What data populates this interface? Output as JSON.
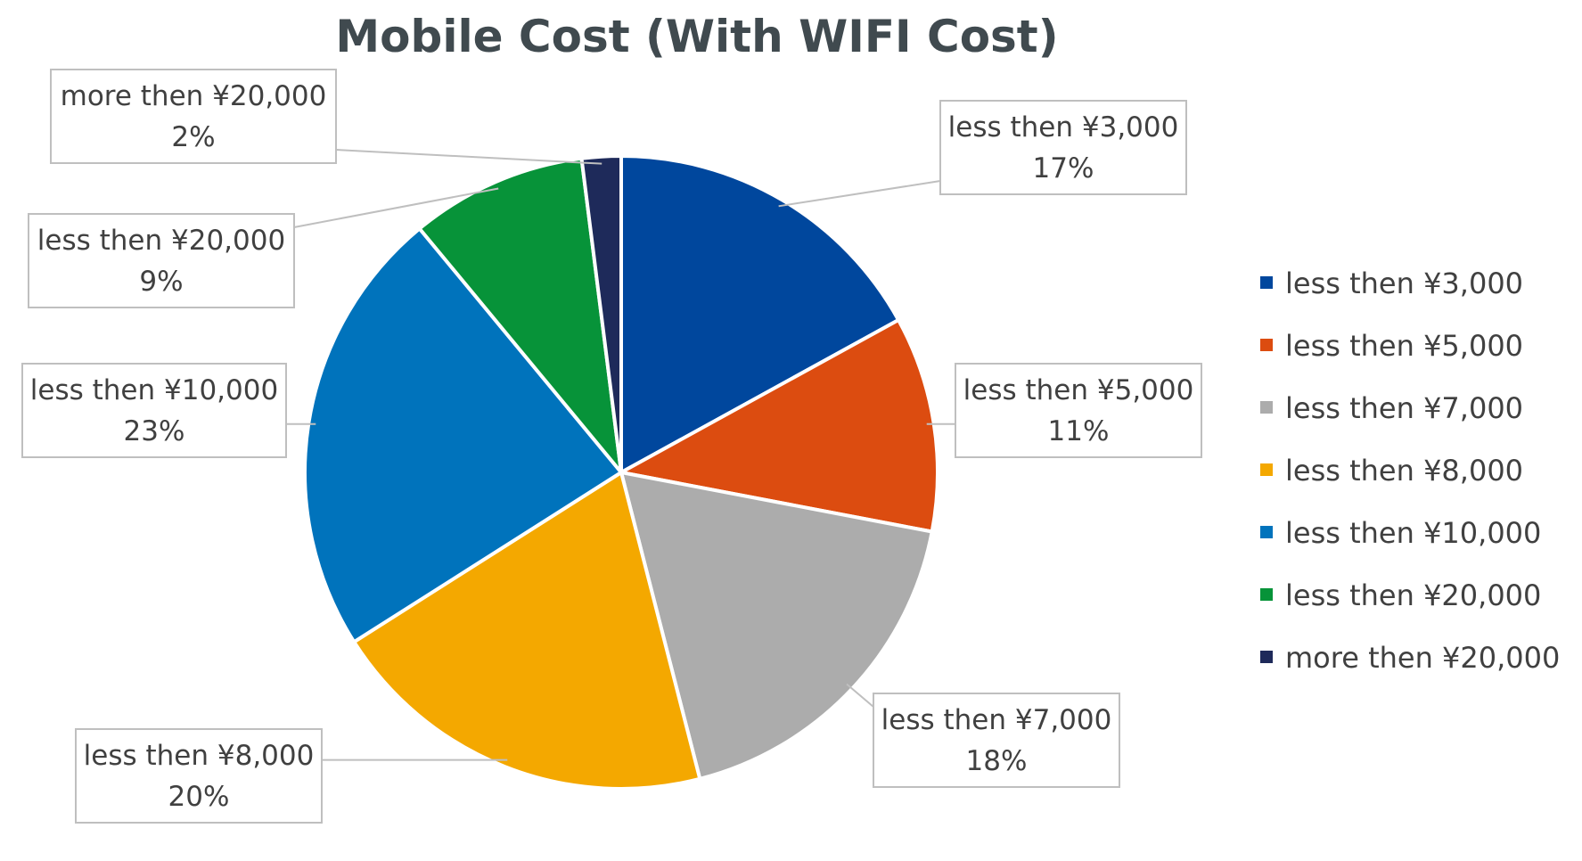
{
  "chart_data": {
    "type": "pie",
    "title": "Mobile Cost (With WIFI Cost)",
    "legend_position": "right",
    "slices": [
      {
        "label": "less then ¥3,000",
        "value": 17,
        "value_label": "17%",
        "color": "#00479d"
      },
      {
        "label": "less then ¥5,000",
        "value": 11,
        "value_label": "11%",
        "color": "#dc4c10"
      },
      {
        "label": "less then ¥7,000",
        "value": 18,
        "value_label": "18%",
        "color": "#acacac"
      },
      {
        "label": "less then ¥8,000",
        "value": 20,
        "value_label": "20%",
        "color": "#f4a800"
      },
      {
        "label": "less then ¥10,000",
        "value": 23,
        "value_label": "23%",
        "color": "#0073bc"
      },
      {
        "label": "less then ¥20,000",
        "value": 9,
        "value_label": "9%",
        "color": "#079339"
      },
      {
        "label": "more then ¥20,000",
        "value": 2,
        "value_label": "2%",
        "color": "#1e2a5a"
      }
    ]
  }
}
